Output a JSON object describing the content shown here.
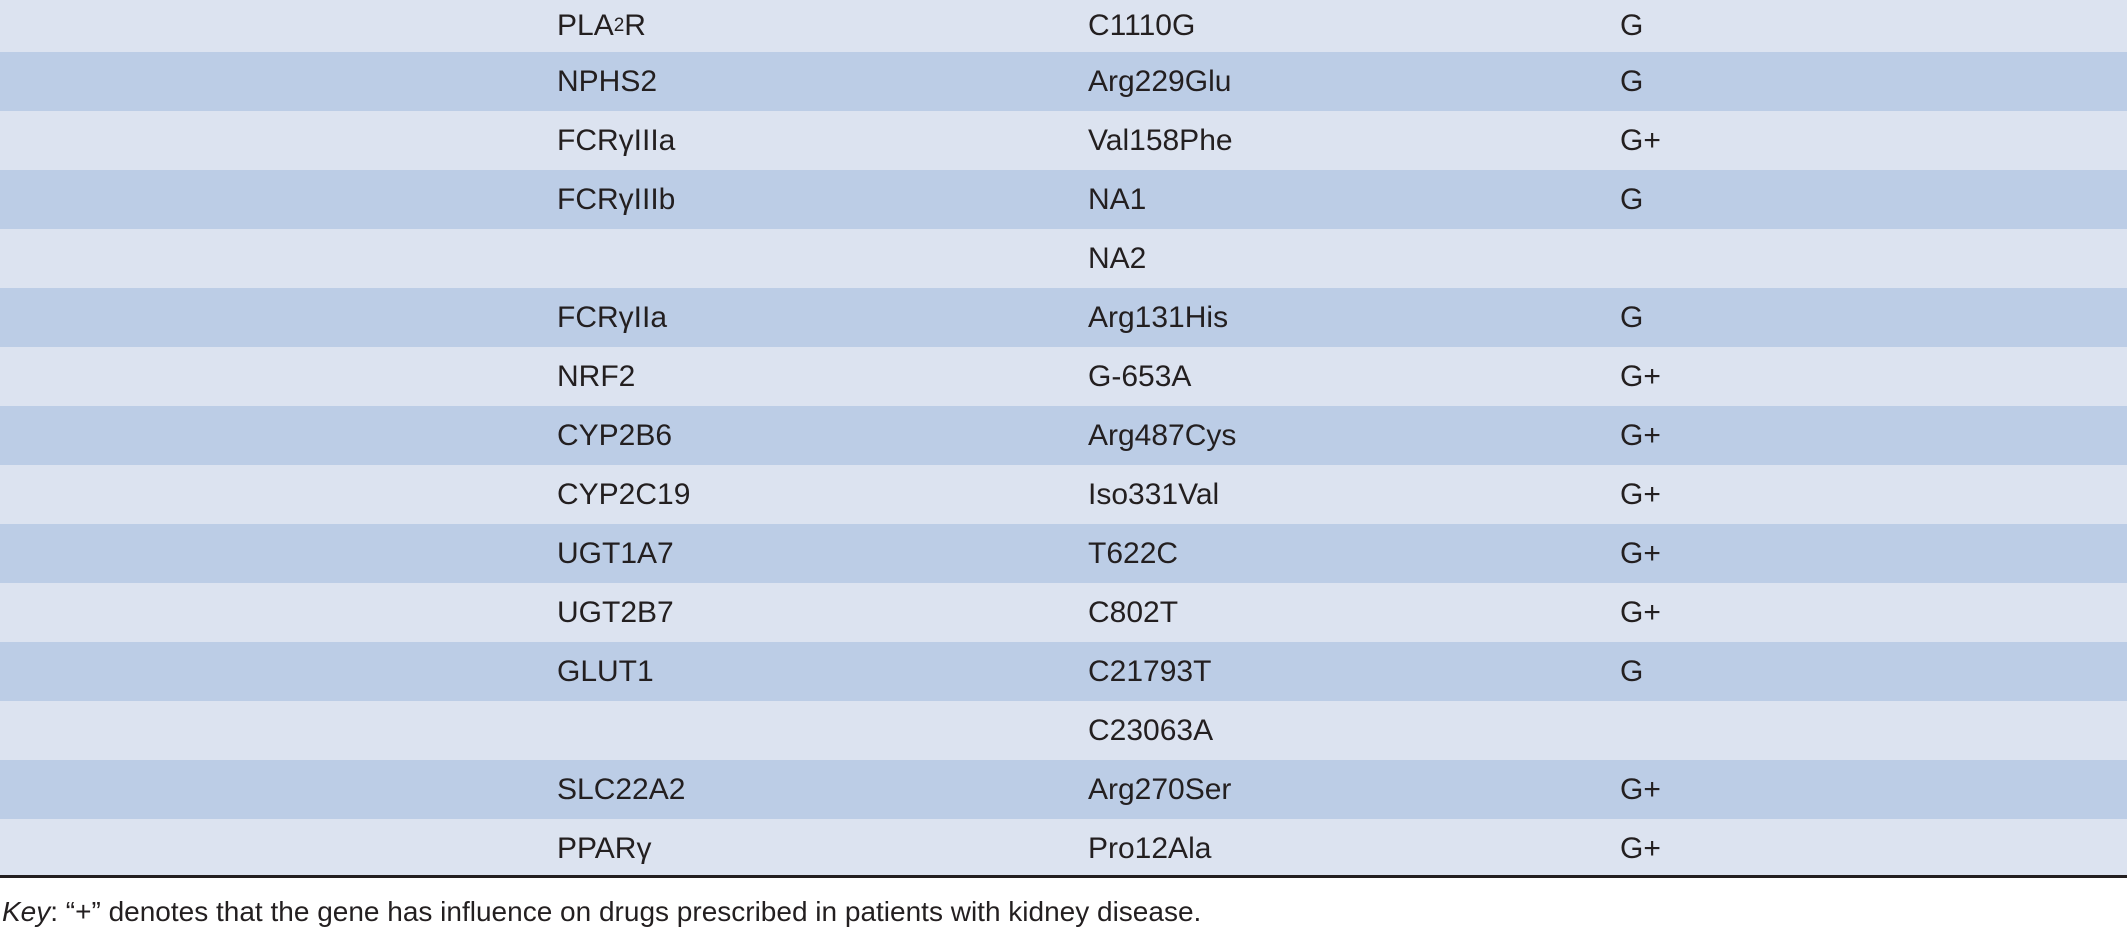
{
  "table": {
    "rows": [
      [
        [
          "PLA",
          "2",
          "R"
        ],
        "C1110G",
        "G"
      ],
      [
        "NPHS2",
        "Arg229Glu",
        "G"
      ],
      [
        "FCRγIIIa",
        "Val158Phe",
        "G+"
      ],
      [
        "FCRγIIIb",
        "NA1",
        "G"
      ],
      [
        null,
        "NA2",
        null
      ],
      [
        "FCRγIIa",
        "Arg131His",
        "G"
      ],
      [
        "NRF2",
        "G-653A",
        "G+"
      ],
      [
        "CYP2B6",
        "Arg487Cys",
        "G+"
      ],
      [
        "CYP2C19",
        "Iso331Val",
        "G+"
      ],
      [
        "UGT1A7",
        "T622C",
        "G+"
      ],
      [
        "UGT2B7",
        "C802T",
        "G+"
      ],
      [
        "GLUT1",
        "C21793T",
        "G"
      ],
      [
        null,
        "C23063A",
        null
      ],
      [
        "SLC22A2",
        "Arg270Ser",
        "G+"
      ],
      [
        "PPARγ",
        "Pro12Ala",
        "G+"
      ]
    ]
  },
  "footnote": {
    "label": "Key",
    "text": ": “+” denotes that the gene has influence on drugs prescribed in patients with kidney disease."
  }
}
